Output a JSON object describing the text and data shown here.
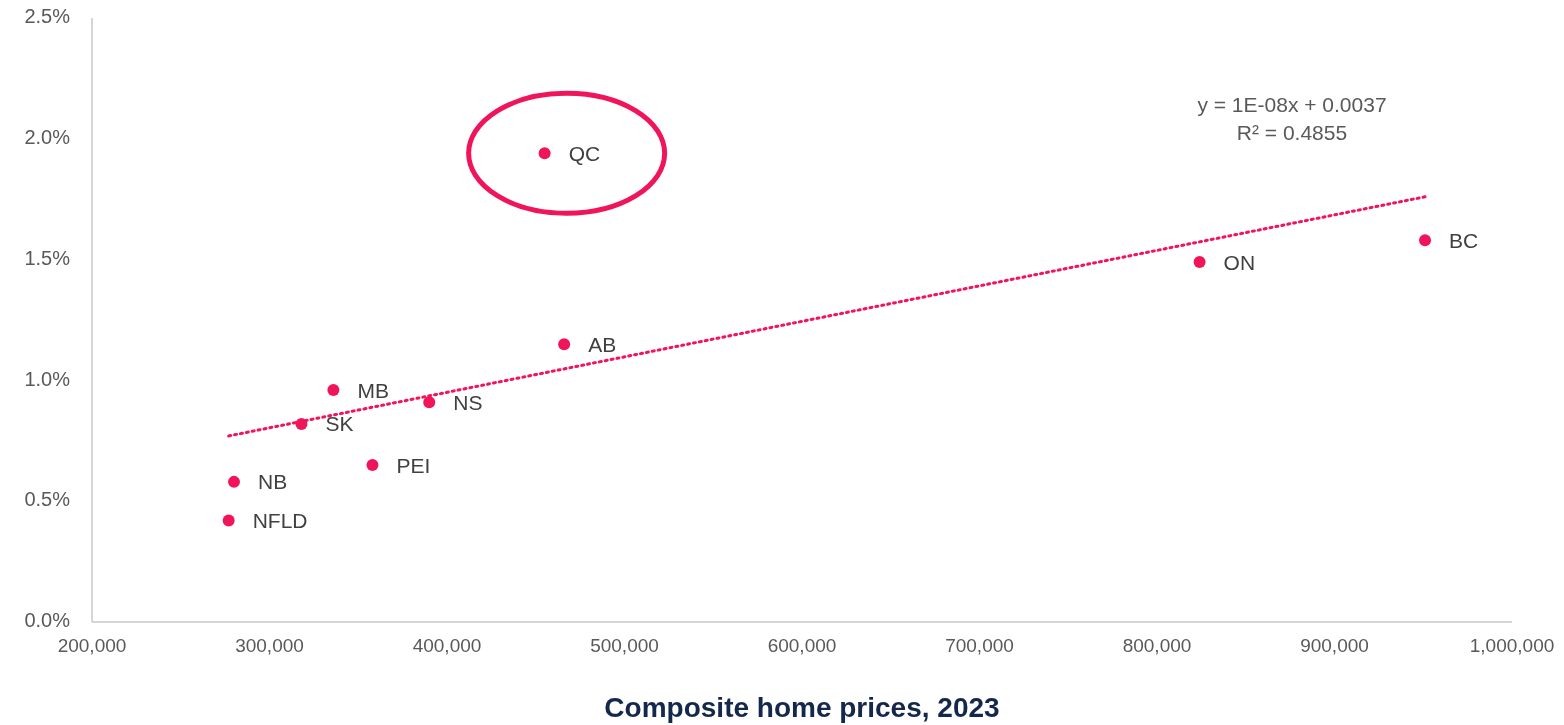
{
  "chart_data": {
    "type": "scatter",
    "xlabel": "Composite home prices, 2023",
    "xlim": [
      200000,
      1000000
    ],
    "xticks": [
      {
        "value": 200000,
        "label": "200,000"
      },
      {
        "value": 300000,
        "label": "300,000"
      },
      {
        "value": 400000,
        "label": "400,000"
      },
      {
        "value": 500000,
        "label": "500,000"
      },
      {
        "value": 600000,
        "label": "600,000"
      },
      {
        "value": 700000,
        "label": "700,000"
      },
      {
        "value": 800000,
        "label": "800,000"
      },
      {
        "value": 900000,
        "label": "900,000"
      },
      {
        "value": 1000000,
        "label": "1,000,000"
      }
    ],
    "ylim": [
      0,
      2.5
    ],
    "yticks": [
      {
        "value": 0,
        "label": "0.0%"
      },
      {
        "value": 0.5,
        "label": "0.5%"
      },
      {
        "value": 1,
        "label": "1.0%"
      },
      {
        "value": 1.5,
        "label": "1.5%"
      },
      {
        "value": 2,
        "label": "2.0%"
      },
      {
        "value": 2.5,
        "label": "2.5%"
      }
    ],
    "grid": false,
    "marker": "circle",
    "series": [
      {
        "color": "#f0155a",
        "x": [
          455000,
          951000,
          824000,
          466000,
          336000,
          390000,
          318000,
          358000,
          280000,
          277000
        ],
        "values": [
          1.94,
          1.58,
          1.49,
          1.15,
          0.96,
          0.91,
          0.82,
          0.65,
          0.58,
          0.42
        ]
      },
      {
        "type": "line",
        "color": "#f0155a",
        "line_style": "dotted",
        "marker": "none",
        "x": [
          277000,
          951000
        ],
        "values": [
          0.77,
          1.76
        ]
      }
    ],
    "annotations": [
      {
        "text": "QC",
        "x": 455000,
        "y": 1.94
      },
      {
        "text": "BC",
        "x": 951000,
        "y": 1.58
      },
      {
        "text": "ON",
        "x": 824000,
        "y": 1.49
      },
      {
        "text": "AB",
        "x": 466000,
        "y": 1.15
      },
      {
        "text": "MB",
        "x": 336000,
        "y": 0.96
      },
      {
        "text": "NS",
        "x": 390000,
        "y": 0.91
      },
      {
        "text": "SK",
        "x": 318000,
        "y": 0.82
      },
      {
        "text": "PEI",
        "x": 358000,
        "y": 0.65
      },
      {
        "text": "NB",
        "x": 280000,
        "y": 0.58
      },
      {
        "text": "NFLD",
        "x": 277000,
        "y": 0.42
      },
      "y = 1E-08x + 0.0037",
      "R² = 0.4855"
    ]
  }
}
